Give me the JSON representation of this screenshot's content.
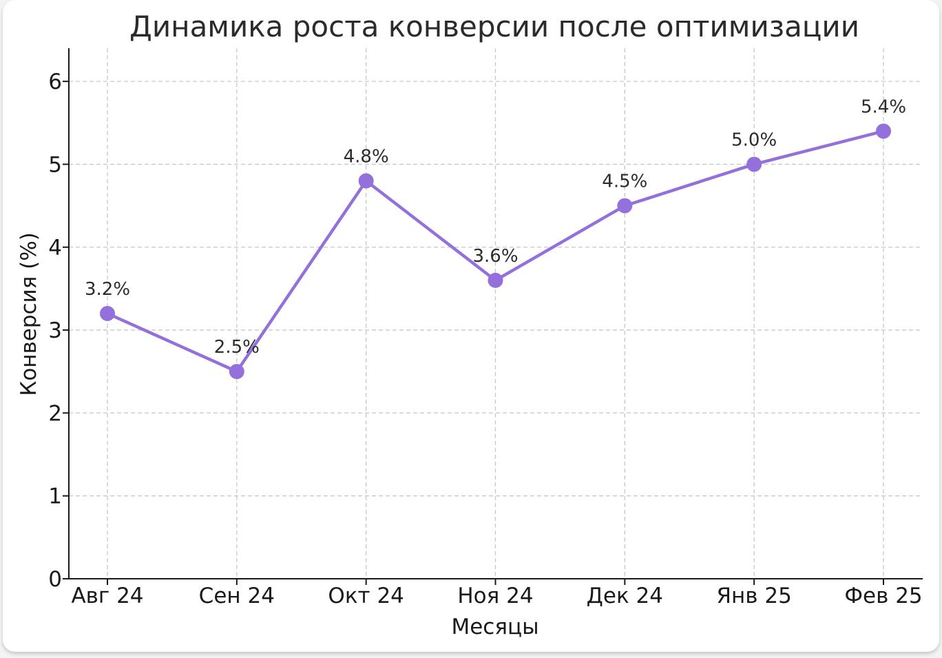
{
  "chart_data": {
    "type": "line",
    "title": "Динамика роста конверсии после оптимизации",
    "xlabel": "Месяцы",
    "ylabel": "Конверсия (%)",
    "categories": [
      "Авг 24",
      "Сен 24",
      "Окт 24",
      "Ноя 24",
      "Дек 24",
      "Янв 25",
      "Фев 25"
    ],
    "series": [
      {
        "values": [
          3.2,
          2.5,
          4.8,
          3.6,
          4.5,
          5.0,
          5.4
        ],
        "labels": [
          "3.2%",
          "2.5%",
          "4.8%",
          "3.6%",
          "4.5%",
          "5.0%",
          "5.4%"
        ],
        "color": "#9370db"
      }
    ],
    "ylim": [
      0,
      6.4
    ],
    "yticks": [
      0,
      1,
      2,
      3,
      4,
      5,
      6
    ],
    "grid": true,
    "grid_style": "dashed"
  }
}
